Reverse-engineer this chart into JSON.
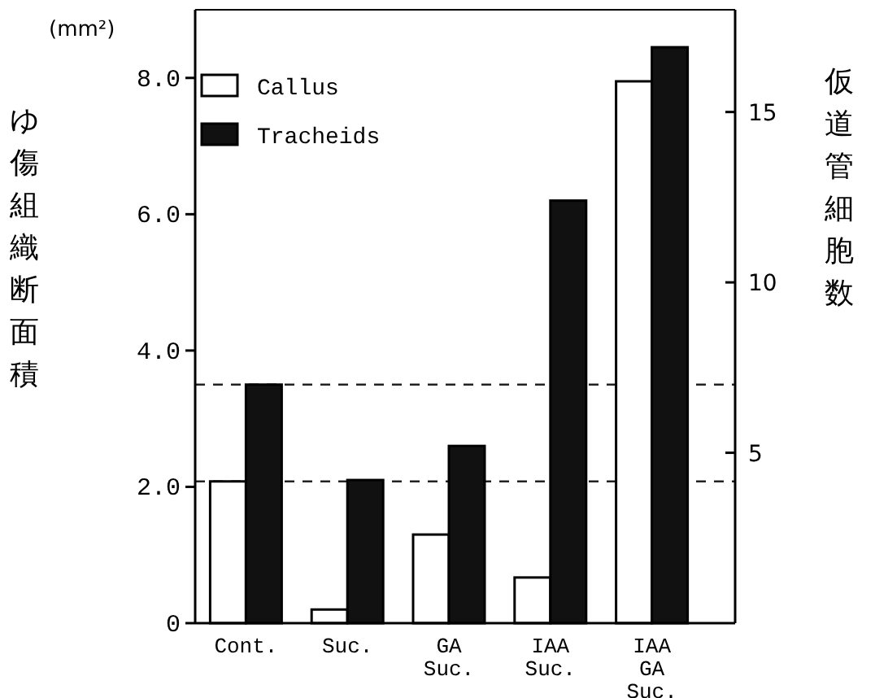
{
  "chart_data": {
    "type": "bar",
    "categories": [
      "Cont.",
      "Suc.",
      "GA\nSuc.",
      "IAA\nSuc.",
      "IAA\nGA\nSuc."
    ],
    "ylabel": "ゆ傷組織断面積",
    "y2label": "仮道管細胞数",
    "annotations": [
      "(mm²)"
    ],
    "series": [
      {
        "name": "Callus",
        "color": "#ffffff",
        "values": [
          2.08,
          0.2,
          1.3,
          0.67,
          7.95
        ]
      },
      {
        "name": "Tracheids",
        "color": "#111111",
        "axis": "y2",
        "values": [
          7.0,
          4.2,
          5.2,
          12.4,
          16.9
        ]
      }
    ],
    "ylim": [
      0,
      9
    ],
    "yticks": [
      0,
      {
        "value": 2,
        "label": "2.0"
      },
      {
        "value": 4,
        "label": "4.0"
      },
      {
        "value": 6,
        "label": "6.0"
      },
      {
        "value": 8,
        "label": "8.0"
      }
    ],
    "y2lim": [
      0,
      18
    ],
    "y2ticks": [
      5,
      10,
      15
    ],
    "ref_lines": [
      {
        "axis": "y2",
        "value": 7.0,
        "line_style": "dashed",
        "color": "#222222"
      },
      {
        "axis": "y",
        "value": 2.08,
        "line_style": "dashed",
        "color": "#222222"
      }
    ],
    "legend": "top left",
    "grid": false
  }
}
